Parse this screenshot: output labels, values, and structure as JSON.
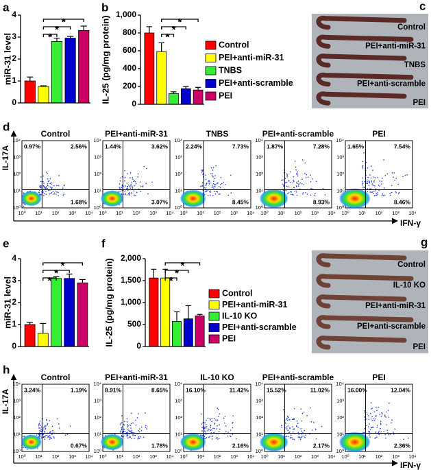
{
  "chart_data": [
    {
      "type": "bar",
      "panel": "a",
      "y_label": "miR-31 level",
      "values": [
        1.0,
        0.75,
        2.8,
        2.95,
        3.3
      ],
      "errors": [
        0.18,
        0.03,
        0.15,
        0.08,
        0.2
      ],
      "colors": [
        "#ff0000",
        "#ffff00",
        "#33ee33",
        "#0000cc",
        "#cc0066"
      ],
      "ylim": [
        0,
        4
      ],
      "yticks": [
        0,
        1,
        2,
        3,
        4
      ],
      "significance": [
        {
          "pair": [
            1,
            2
          ],
          "label": "*"
        },
        {
          "pair": [
            1,
            3
          ],
          "label": "*"
        },
        {
          "pair": [
            1,
            4
          ],
          "label": "*"
        }
      ]
    },
    {
      "type": "bar",
      "panel": "b",
      "y_label": "IL-25 (pg/mg protein)",
      "categories": [
        "Control",
        "PEI+anti-miR-31",
        "TNBS",
        "PEI+anti-scramble",
        "PEI"
      ],
      "values": [
        800,
        590,
        120,
        175,
        160
      ],
      "errors": [
        70,
        100,
        20,
        25,
        30
      ],
      "colors": [
        "#ff0000",
        "#ffff00",
        "#33ee33",
        "#0000cc",
        "#cc0066"
      ],
      "ylim": [
        0,
        1000
      ],
      "yticks": [
        0,
        200,
        400,
        600,
        800,
        {
          "value": 1000,
          "label": "1,000"
        }
      ],
      "legend": "right",
      "significance": [
        {
          "pair": [
            1,
            2
          ],
          "label": "*"
        },
        {
          "pair": [
            1,
            3
          ],
          "label": "*"
        },
        {
          "pair": [
            1,
            4
          ],
          "label": "*"
        }
      ]
    },
    {
      "type": "bar",
      "panel": "e",
      "y_label": "miR-31 level",
      "values": [
        1.0,
        0.6,
        3.1,
        3.1,
        2.9
      ],
      "errors": [
        0.1,
        0.45,
        0.08,
        0.2,
        0.15
      ],
      "colors": [
        "#ff0000",
        "#ffff00",
        "#33ee33",
        "#0000cc",
        "#cc0066"
      ],
      "ylim": [
        0,
        4
      ],
      "yticks": [
        0,
        1,
        2,
        3,
        4
      ],
      "significance": [
        {
          "pair": [
            1,
            2
          ],
          "label": "*"
        },
        {
          "pair": [
            1,
            3
          ],
          "label": "*"
        },
        {
          "pair": [
            1,
            4
          ],
          "label": "*"
        }
      ]
    },
    {
      "type": "bar",
      "panel": "f",
      "y_label": "IL-25 (pg/mg protein)",
      "categories": [
        "Control",
        "PEI+anti-miR-31",
        "IL-10 KO",
        "PEI+anti-scramble",
        "PEI"
      ],
      "values": [
        1560,
        1560,
        570,
        630,
        700
      ],
      "errors": [
        200,
        200,
        220,
        300,
        30
      ],
      "colors": [
        "#ff0000",
        "#ffff00",
        "#33ee33",
        "#0000cc",
        "#cc0066"
      ],
      "ylim": [
        0,
        2000
      ],
      "yticks": [
        0,
        500,
        {
          "value": 1000,
          "label": "1,000"
        },
        {
          "value": 1500,
          "label": "1,500"
        },
        {
          "value": 2000,
          "label": "2,000"
        }
      ],
      "legend": "right",
      "significance": [
        {
          "pair": [
            1,
            2
          ],
          "label": "*"
        },
        {
          "pair": [
            1,
            3
          ],
          "label": "*"
        },
        {
          "pair": [
            1,
            4
          ],
          "label": "*"
        }
      ]
    }
  ],
  "flow": [
    {
      "panel": "d",
      "x_label": "IFN-γ",
      "y_label": "IL-17A",
      "ticks": [
        "10⁰",
        "10¹",
        "10²",
        "10³",
        "10⁴"
      ],
      "plots": [
        {
          "title": "Control",
          "quadrants": [
            "0.97%",
            "2.56%",
            "1.68%"
          ]
        },
        {
          "title": "PEI+anti-miR-31",
          "quadrants": [
            "1.44%",
            "3.62%",
            "3.07%"
          ]
        },
        {
          "title": "TNBS",
          "quadrants": [
            "2.24%",
            "7.73%",
            "8.45%"
          ]
        },
        {
          "title": "PEI+anti-scramble",
          "quadrants": [
            "1.87%",
            "7.28%",
            "8.93%"
          ]
        },
        {
          "title": "PEI",
          "quadrants": [
            "1.65%",
            "7.54%",
            "8.46%"
          ]
        }
      ]
    },
    {
      "panel": "h",
      "x_label": "IFN-γ",
      "y_label": "IL-17A",
      "ticks": [
        "10⁰",
        "10¹",
        "10²",
        "10³",
        "10⁴"
      ],
      "plots": [
        {
          "title": "Control",
          "quadrants": [
            "3.24%",
            "1.19%",
            "0.67%"
          ]
        },
        {
          "title": "PEI+anti-miR-31",
          "quadrants": [
            "8.91%",
            "8.65%",
            "1.78%"
          ]
        },
        {
          "title": "IL-10 KO",
          "quadrants": [
            "16.10%",
            "11.42%",
            "2.16%"
          ]
        },
        {
          "title": "PEI+anti-scramble",
          "quadrants": [
            "15.52%",
            "11.02%",
            "2.17%"
          ]
        },
        {
          "title": "PEI",
          "quadrants": [
            "16.00%",
            "12.04%",
            "2.36%"
          ]
        }
      ]
    }
  ],
  "photos": [
    {
      "panel": "c",
      "labels": [
        "Control",
        "PEI+anti-miR-31",
        "TNBS",
        "PEI+anti-scramble",
        "PEI"
      ]
    },
    {
      "panel": "g",
      "labels": [
        "Control",
        "IL-10 KO",
        "PEI+anti-miR-31",
        "PEI+anti-scramble",
        "PEI"
      ]
    }
  ]
}
